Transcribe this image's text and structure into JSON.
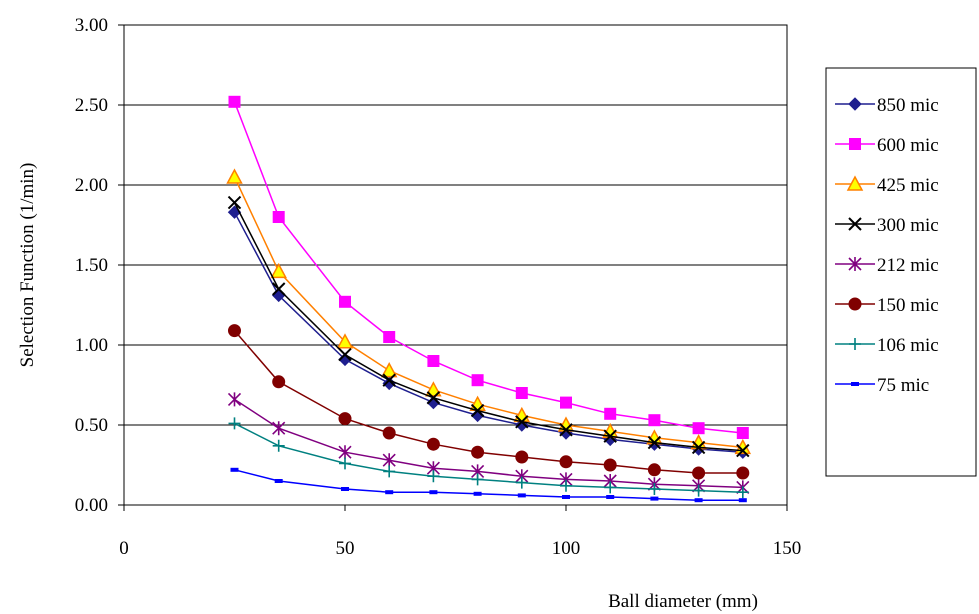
{
  "chart_data": {
    "type": "line",
    "title": "",
    "xlabel": "Ball diameter (mm)",
    "ylabel": "Selection Function  (1/min)",
    "xlim": [
      0,
      150
    ],
    "ylim": [
      0,
      3.0
    ],
    "x_ticks": [
      "0",
      "50",
      "100",
      "150"
    ],
    "y_ticks": [
      "0.00",
      "0.50",
      "1.00",
      "1.50",
      "2.00",
      "2.50",
      "3.00"
    ],
    "grid": "horizontal",
    "legend_position": "right",
    "x": [
      25,
      35,
      50,
      60,
      70,
      80,
      90,
      100,
      110,
      120,
      130,
      140
    ],
    "series": [
      {
        "name": "850 mic",
        "color": "#1f1f8f",
        "marker": "diamond",
        "values": [
          1.83,
          1.31,
          0.91,
          0.76,
          0.64,
          0.56,
          0.5,
          0.45,
          0.41,
          0.38,
          0.35,
          0.33
        ]
      },
      {
        "name": "600 mic",
        "color": "#ff00ff",
        "marker": "square",
        "values": [
          2.52,
          1.8,
          1.27,
          1.05,
          0.9,
          0.78,
          0.7,
          0.64,
          0.57,
          0.53,
          0.48,
          0.45
        ]
      },
      {
        "name": "425 mic",
        "color": "#ff8000",
        "marker": "triangle",
        "values": [
          2.05,
          1.46,
          1.02,
          0.84,
          0.72,
          0.63,
          0.56,
          0.5,
          0.46,
          0.42,
          0.39,
          0.36
        ]
      },
      {
        "name": "300 mic",
        "color": "#000000",
        "marker": "x",
        "values": [
          1.89,
          1.35,
          0.94,
          0.78,
          0.67,
          0.59,
          0.52,
          0.47,
          0.43,
          0.39,
          0.36,
          0.34
        ]
      },
      {
        "name": "212 mic",
        "color": "#800080",
        "marker": "star",
        "values": [
          0.66,
          0.48,
          0.33,
          0.28,
          0.23,
          0.21,
          0.18,
          0.16,
          0.15,
          0.13,
          0.12,
          0.11
        ]
      },
      {
        "name": "150 mic",
        "color": "#800000",
        "marker": "circle",
        "values": [
          1.09,
          0.77,
          0.54,
          0.45,
          0.38,
          0.33,
          0.3,
          0.27,
          0.25,
          0.22,
          0.2,
          0.2
        ]
      },
      {
        "name": "106 mic",
        "color": "#008080",
        "marker": "plus",
        "values": [
          0.51,
          0.37,
          0.26,
          0.21,
          0.18,
          0.16,
          0.14,
          0.12,
          0.11,
          0.1,
          0.09,
          0.08
        ]
      },
      {
        "name": "75 mic",
        "color": "#0000ff",
        "marker": "dash",
        "values": [
          0.22,
          0.15,
          0.1,
          0.08,
          0.08,
          0.07,
          0.06,
          0.05,
          0.05,
          0.04,
          0.03,
          0.03
        ]
      }
    ]
  }
}
